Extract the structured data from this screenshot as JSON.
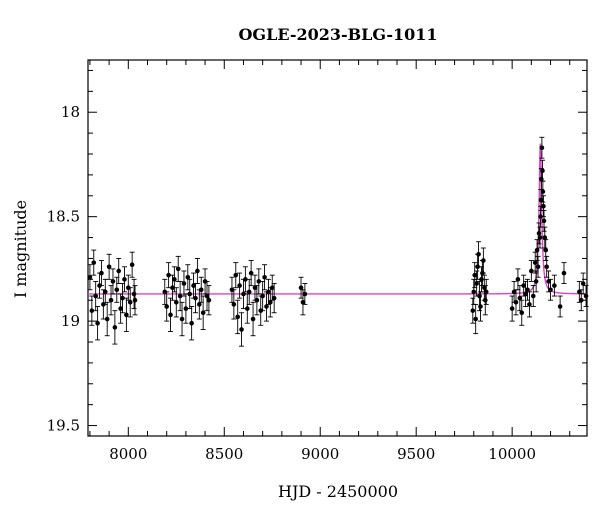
{
  "chart_data": {
    "type": "scatter",
    "title": "OGLE-2023-BLG-1011",
    "xlabel": "HJD - 2450000",
    "ylabel": "I magnitude",
    "xlim": [
      7790,
      10390
    ],
    "ylim": [
      19.55,
      17.75
    ],
    "y_inverted": true,
    "grid": false,
    "x_ticks": [
      {
        "value": 8000,
        "label": "8000"
      },
      {
        "value": 8500,
        "label": "8500"
      },
      {
        "value": 9000,
        "label": "9000"
      },
      {
        "value": 9500,
        "label": "9500"
      },
      {
        "value": 10000,
        "label": "10000"
      }
    ],
    "y_ticks": [
      {
        "value": 18,
        "label": "18"
      },
      {
        "value": 18.5,
        "label": "18.5"
      },
      {
        "value": 19,
        "label": "19"
      },
      {
        "value": 19.5,
        "label": "19.5"
      }
    ],
    "colors": {
      "points": "#000000",
      "model": "#dd44cc",
      "axes": "#000000"
    },
    "model": {
      "baseline_mag": 18.87,
      "t0": 10147,
      "peak_mag": 18.15,
      "width_days": 14
    },
    "series": [
      {
        "type": "scatter_errorbars",
        "x": [
          7800,
          7810,
          7820,
          7830,
          7840,
          7850,
          7860,
          7870,
          7880,
          7890,
          7900,
          7910,
          7920,
          7930,
          7940,
          7950,
          7960,
          7970,
          7980,
          7990,
          8000,
          8010,
          8020,
          8030,
          8035,
          8190,
          8200,
          8210,
          8220,
          8230,
          8240,
          8250,
          8260,
          8270,
          8280,
          8290,
          8300,
          8310,
          8320,
          8330,
          8340,
          8350,
          8360,
          8370,
          8380,
          8390,
          8400,
          8410,
          8420,
          8540,
          8550,
          8560,
          8570,
          8580,
          8590,
          8600,
          8610,
          8620,
          8630,
          8640,
          8650,
          8660,
          8670,
          8680,
          8690,
          8700,
          8710,
          8720,
          8730,
          8740,
          8750,
          8760,
          8900,
          8910,
          8920,
          9795,
          9800,
          9805,
          9810,
          9815,
          9820,
          9825,
          9830,
          9835,
          9840,
          9845,
          9850,
          9855,
          9860,
          9865,
          10000,
          10010,
          10020,
          10030,
          10040,
          10050,
          10060,
          10070,
          10080,
          10090,
          10100,
          10110,
          10120,
          10125,
          10130,
          10135,
          10140,
          10145,
          10148,
          10150,
          10152,
          10155,
          10158,
          10160,
          10163,
          10166,
          10170,
          10175,
          10180,
          10190,
          10200,
          10220,
          10250,
          10270,
          10350,
          10360,
          10370,
          10385
        ],
        "y": [
          18.79,
          18.95,
          18.72,
          18.88,
          19.01,
          18.83,
          18.77,
          18.92,
          18.86,
          18.99,
          18.74,
          18.9,
          18.81,
          19.03,
          18.85,
          18.76,
          18.94,
          18.89,
          18.8,
          18.97,
          18.84,
          18.91,
          18.73,
          18.87,
          18.9,
          18.86,
          18.93,
          18.78,
          18.97,
          18.84,
          18.8,
          18.91,
          18.75,
          18.88,
          18.99,
          18.82,
          18.94,
          18.79,
          18.87,
          19.01,
          18.83,
          18.89,
          18.76,
          18.92,
          18.85,
          18.96,
          18.81,
          18.88,
          18.9,
          18.85,
          18.92,
          18.78,
          18.98,
          18.83,
          19.04,
          18.87,
          18.8,
          18.94,
          18.86,
          18.77,
          18.99,
          18.84,
          18.9,
          18.81,
          18.95,
          18.88,
          18.79,
          18.93,
          18.86,
          18.91,
          18.84,
          18.89,
          18.84,
          18.91,
          18.87,
          18.95,
          18.86,
          18.78,
          18.99,
          18.82,
          18.74,
          18.68,
          18.88,
          18.93,
          18.8,
          18.77,
          18.71,
          18.84,
          18.9,
          18.86,
          18.94,
          18.86,
          18.91,
          18.8,
          18.89,
          18.96,
          18.83,
          18.87,
          18.85,
          18.92,
          18.76,
          18.88,
          18.72,
          18.81,
          18.66,
          18.74,
          18.58,
          18.6,
          18.5,
          18.42,
          18.32,
          18.17,
          18.28,
          18.38,
          18.45,
          18.52,
          18.6,
          18.66,
          18.74,
          18.81,
          18.85,
          18.83,
          18.93,
          18.77,
          18.86,
          18.9,
          18.82,
          18.88
        ],
        "err": [
          0.06,
          0.07,
          0.06,
          0.07,
          0.08,
          0.06,
          0.06,
          0.07,
          0.06,
          0.08,
          0.06,
          0.07,
          0.06,
          0.08,
          0.06,
          0.06,
          0.07,
          0.07,
          0.06,
          0.08,
          0.06,
          0.07,
          0.06,
          0.07,
          0.07,
          0.06,
          0.07,
          0.06,
          0.08,
          0.06,
          0.06,
          0.07,
          0.06,
          0.07,
          0.08,
          0.06,
          0.07,
          0.06,
          0.07,
          0.08,
          0.06,
          0.07,
          0.06,
          0.07,
          0.06,
          0.08,
          0.06,
          0.07,
          0.07,
          0.06,
          0.07,
          0.06,
          0.08,
          0.06,
          0.08,
          0.07,
          0.06,
          0.07,
          0.06,
          0.06,
          0.08,
          0.06,
          0.07,
          0.06,
          0.07,
          0.07,
          0.06,
          0.07,
          0.06,
          0.07,
          0.06,
          0.07,
          0.05,
          0.06,
          0.05,
          0.06,
          0.06,
          0.06,
          0.07,
          0.06,
          0.06,
          0.06,
          0.07,
          0.07,
          0.06,
          0.06,
          0.06,
          0.06,
          0.07,
          0.06,
          0.06,
          0.05,
          0.06,
          0.05,
          0.06,
          0.06,
          0.05,
          0.06,
          0.05,
          0.06,
          0.05,
          0.05,
          0.05,
          0.05,
          0.05,
          0.05,
          0.05,
          0.05,
          0.05,
          0.05,
          0.05,
          0.05,
          0.05,
          0.05,
          0.05,
          0.05,
          0.05,
          0.05,
          0.05,
          0.05,
          0.05,
          0.05,
          0.05,
          0.05,
          0.05,
          0.05,
          0.05,
          0.05
        ]
      }
    ]
  }
}
